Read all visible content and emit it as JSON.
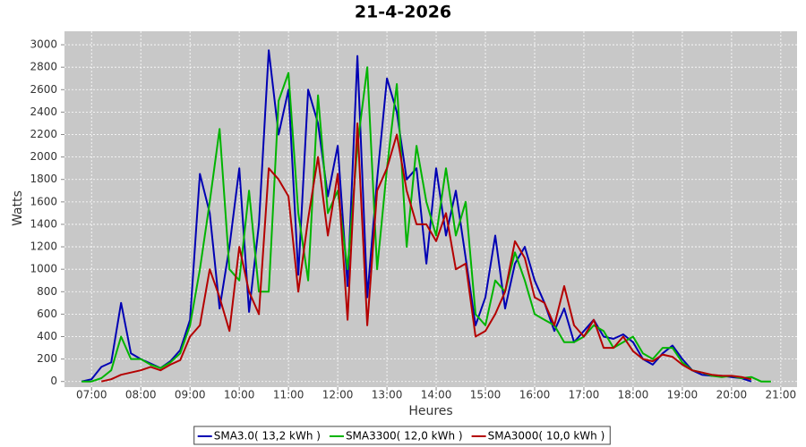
{
  "chart_data": {
    "type": "line",
    "title": "21-4-2026",
    "x_label": "Heures",
    "y_label": "Watts",
    "x": [
      6.8,
      7,
      7.2,
      7.4,
      7.6,
      7.8,
      8,
      8.2,
      8.4,
      8.6,
      8.8,
      9,
      9.2,
      9.4,
      9.6,
      9.8,
      10,
      10.2,
      10.4,
      10.6,
      10.8,
      11,
      11.2,
      11.4,
      11.6,
      11.8,
      12,
      12.2,
      12.4,
      12.6,
      12.8,
      13,
      13.2,
      13.4,
      13.6,
      13.8,
      14,
      14.2,
      14.4,
      14.6,
      14.8,
      15,
      15.2,
      15.4,
      15.6,
      15.8,
      16,
      16.2,
      16.4,
      16.6,
      16.8,
      17,
      17.2,
      17.4,
      17.6,
      17.8,
      18,
      18.2,
      18.4,
      18.6,
      18.8,
      19,
      19.2,
      19.4,
      19.6,
      19.8,
      20,
      20.2,
      20.4,
      20.6,
      20.8,
      21
    ],
    "series": [
      {
        "name": "SMA3.0( 13,2 kWh )",
        "color": "#0000b4",
        "values": [
          0,
          20,
          130,
          170,
          700,
          250,
          200,
          160,
          120,
          180,
          280,
          550,
          1850,
          1500,
          650,
          1200,
          1900,
          620,
          1400,
          2950,
          2200,
          2600,
          950,
          2600,
          2300,
          1650,
          2100,
          850,
          2900,
          750,
          1800,
          2700,
          2400,
          1800,
          1900,
          1050,
          1900,
          1300,
          1700,
          1100,
          500,
          750,
          1300,
          650,
          1050,
          1200,
          900,
          700,
          450,
          650,
          350,
          450,
          550,
          400,
          380,
          420,
          350,
          200,
          150,
          250,
          320,
          200,
          100,
          60,
          50,
          50,
          40,
          30,
          0,
          null,
          null,
          null
        ]
      },
      {
        "name": "SMA3300( 12,0 kWh )",
        "color": "#00b400",
        "values": [
          0,
          0,
          30,
          100,
          400,
          200,
          200,
          150,
          120,
          170,
          250,
          500,
          1000,
          1600,
          2250,
          1000,
          900,
          1700,
          800,
          800,
          2500,
          2750,
          1500,
          900,
          2550,
          1500,
          1700,
          1000,
          2100,
          2800,
          1000,
          1900,
          2650,
          1200,
          2100,
          1600,
          1300,
          1900,
          1300,
          1600,
          600,
          500,
          900,
          800,
          1150,
          900,
          600,
          550,
          500,
          350,
          350,
          400,
          500,
          450,
          300,
          350,
          400,
          250,
          200,
          300,
          300,
          170,
          100,
          80,
          50,
          40,
          50,
          30,
          40,
          0,
          0,
          null
        ]
      },
      {
        "name": "SMA3000( 10,0 kWh )",
        "color": "#b40000",
        "values": [
          null,
          null,
          0,
          20,
          60,
          80,
          100,
          130,
          100,
          150,
          190,
          400,
          500,
          1000,
          750,
          450,
          1200,
          800,
          600,
          1900,
          1800,
          1650,
          800,
          1450,
          2000,
          1300,
          1850,
          550,
          2300,
          500,
          1700,
          1900,
          2200,
          1700,
          1400,
          1400,
          1250,
          1500,
          1000,
          1050,
          400,
          450,
          600,
          800,
          1250,
          1100,
          750,
          700,
          500,
          850,
          500,
          400,
          550,
          300,
          300,
          400,
          270,
          200,
          180,
          240,
          220,
          150,
          100,
          80,
          60,
          50,
          50,
          40,
          20,
          null,
          null,
          null
        ]
      }
    ],
    "xlim": [
      6.45,
      21.33
    ],
    "ylim": [
      -50,
      3120
    ],
    "xticks": [
      {
        "value": 7,
        "label": "07:00"
      },
      {
        "value": 8,
        "label": "08:00"
      },
      {
        "value": 9,
        "label": "09:00"
      },
      {
        "value": 10,
        "label": "10:00"
      },
      {
        "value": 11,
        "label": "11:00"
      },
      {
        "value": 12,
        "label": "12:00"
      },
      {
        "value": 13,
        "label": "13:00"
      },
      {
        "value": 14,
        "label": "14:00"
      },
      {
        "value": 15,
        "label": "15:00"
      },
      {
        "value": 16,
        "label": "16:00"
      },
      {
        "value": 17,
        "label": "17:00"
      },
      {
        "value": 18,
        "label": "18:00"
      },
      {
        "value": 19,
        "label": "19:00"
      },
      {
        "value": 20,
        "label": "20:00"
      },
      {
        "value": 21,
        "label": "21:00"
      }
    ],
    "yticks": [
      0,
      200,
      400,
      600,
      800,
      1000,
      1200,
      1400,
      1600,
      1800,
      2000,
      2200,
      2400,
      2600,
      2800,
      3000
    ],
    "grid": true
  }
}
